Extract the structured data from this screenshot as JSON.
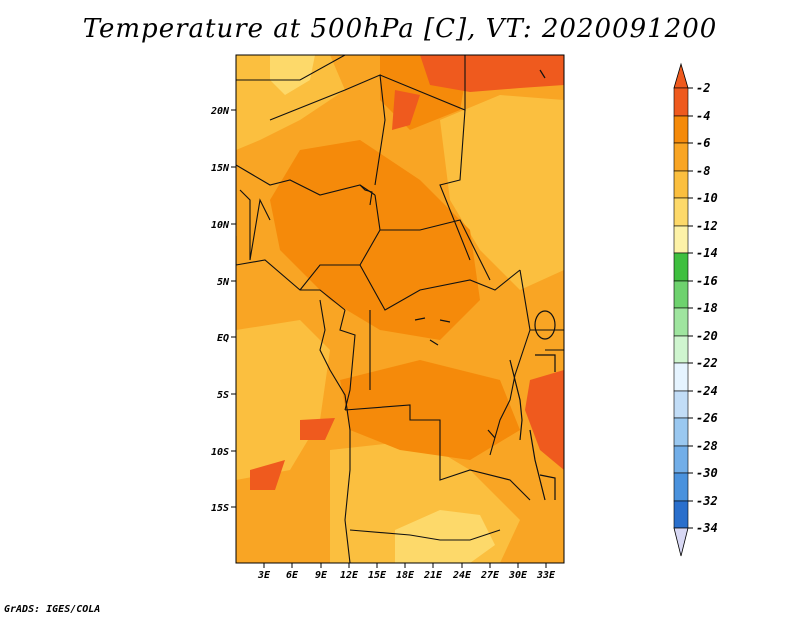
{
  "title": "Temperature at 500hPa [C], VT: 2020091200",
  "credit": "GrADS: IGES/COLA",
  "map": {
    "lat_ticks": [
      "20N",
      "15N",
      "10N",
      "5N",
      "EQ",
      "5S",
      "10S",
      "15S"
    ],
    "lon_ticks": [
      "3E",
      "6E",
      "9E",
      "12E",
      "15E",
      "18E",
      "21E",
      "24E",
      "27E",
      "30E",
      "33E"
    ]
  },
  "colorbar": {
    "labels": [
      "-2",
      "-4",
      "-6",
      "-8",
      "-10",
      "-12",
      "-14",
      "-16",
      "-18",
      "-20",
      "-22",
      "-24",
      "-26",
      "-28",
      "-30",
      "-32",
      "-34"
    ],
    "colors": [
      "#ef5a1e",
      "#f58a0a",
      "#f9a524",
      "#fbbf3f",
      "#fdd96a",
      "#fdf2a8",
      "#3fbf3f",
      "#6ed26e",
      "#9fe59f",
      "#cff5cf",
      "#e6f4ff",
      "#c2ddf7",
      "#9ac8f0",
      "#72aee8",
      "#4a92dd",
      "#2a6fcc",
      "#1456b4",
      "#0a3a94",
      "#0b1a6e",
      "#d8d8f4"
    ]
  }
}
